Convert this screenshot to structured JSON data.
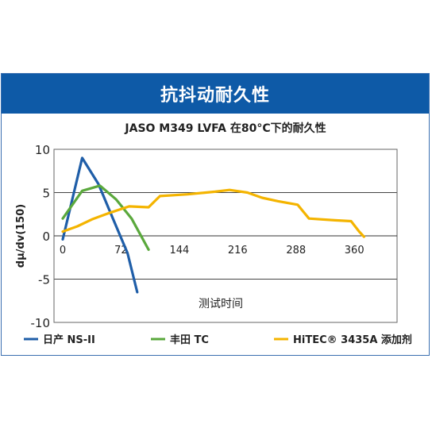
{
  "header": {
    "title": "抗抖动耐久性"
  },
  "chart_data": {
    "type": "line",
    "title": "JASO M349 LVFA 在80°C下的耐久性",
    "xlabel": "测试时间",
    "ylabel": "dμ/dv(150)",
    "xlim": [
      0,
      380
    ],
    "ylim": [
      -10,
      10
    ],
    "x_ticks": [
      0,
      72,
      144,
      216,
      288,
      360
    ],
    "y_ticks": [
      10,
      5,
      0,
      -5,
      -10
    ],
    "grid": true,
    "legend": "bottom",
    "series": [
      {
        "name": "日产 NS-II",
        "color": "#1f5ea8",
        "x": [
          0,
          24,
          44,
          62,
          80,
          92
        ],
        "y": [
          -0.4,
          9.0,
          6.0,
          2.0,
          -2.0,
          -6.5
        ]
      },
      {
        "name": "丰田 TC",
        "color": "#5aa83c",
        "x": [
          0,
          24,
          46,
          66,
          85,
          106
        ],
        "y": [
          2.0,
          5.2,
          5.8,
          4.2,
          2.0,
          -1.6
        ]
      },
      {
        "name": "HiTEC® 3435A 添加剂",
        "color": "#f4b400",
        "x": [
          0,
          18,
          36,
          56,
          82,
          106,
          120,
          154,
          188,
          206,
          228,
          246,
          266,
          290,
          304,
          336,
          356,
          366,
          372
        ],
        "y": [
          0.5,
          1.1,
          1.9,
          2.6,
          3.4,
          3.3,
          4.6,
          4.8,
          5.1,
          5.3,
          5.0,
          4.4,
          4.0,
          3.6,
          2.0,
          1.8,
          1.7,
          0.5,
          -0.1
        ]
      }
    ]
  }
}
